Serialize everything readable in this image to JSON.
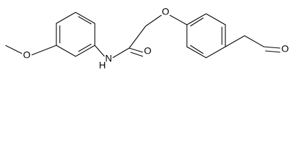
{
  "atoms": [
    {
      "label": "O"
    },
    {
      "label": "N"
    },
    {
      "label": "H"
    },
    {
      "label": "O"
    },
    {
      "label": "O"
    },
    {
      "label": "O"
    }
  ]
}
